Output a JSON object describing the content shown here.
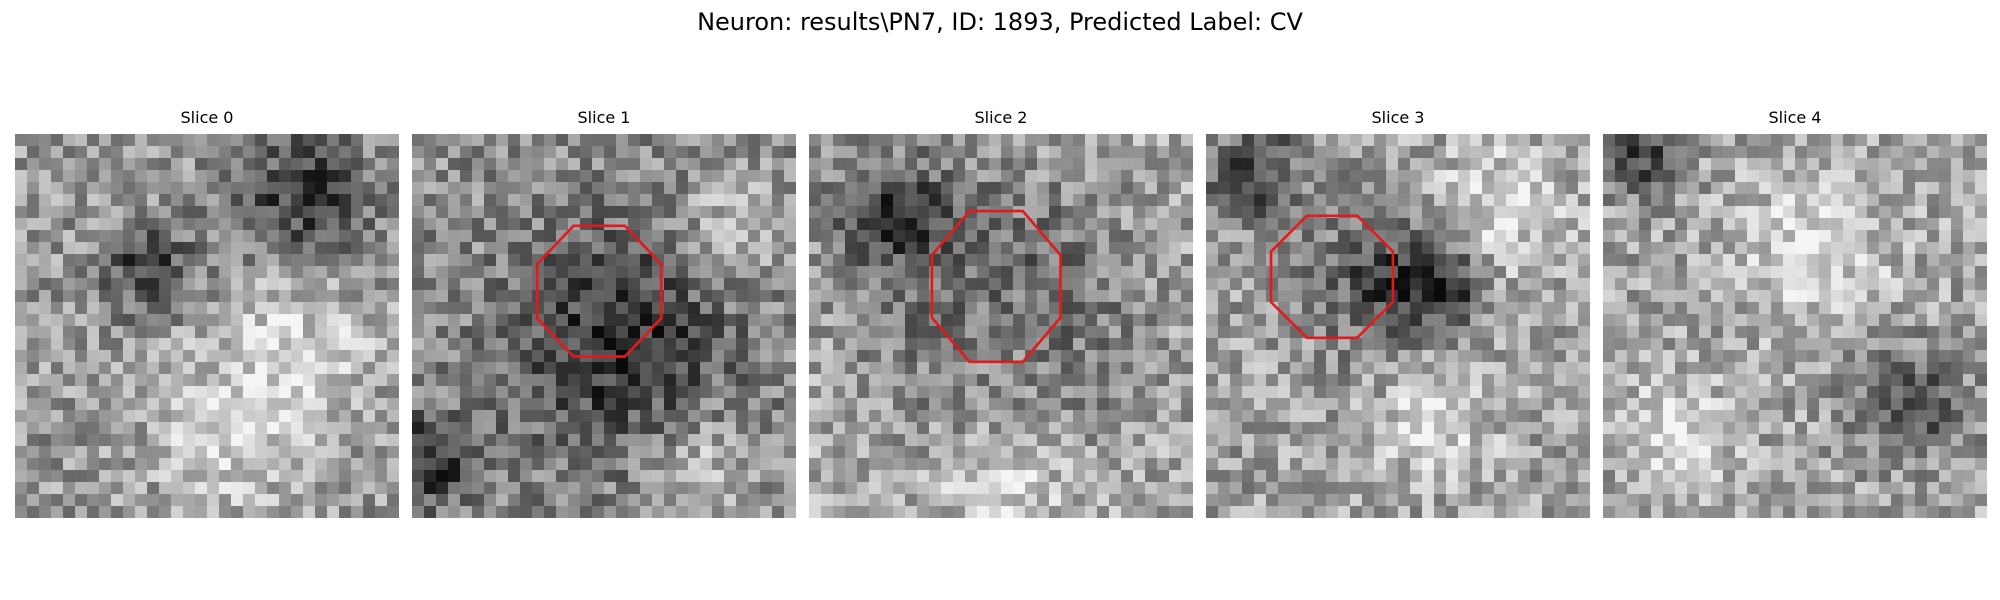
{
  "figure": {
    "title": "Neuron: results\\PN7, ID: 1893, Predicted Label: CV"
  },
  "panels": [
    {
      "title": "Slice 0",
      "contour": false,
      "seed": 11,
      "mean": 0.6,
      "dark_spots": [
        [
          0.75,
          0.17,
          0.18
        ],
        [
          0.35,
          0.35,
          0.12
        ]
      ],
      "light_spots": [
        [
          0.72,
          0.55,
          0.22
        ],
        [
          0.55,
          0.8,
          0.18
        ]
      ]
    },
    {
      "title": "Slice 1",
      "contour": true,
      "seed": 23,
      "mean": 0.55,
      "dark_spots": [
        [
          0.55,
          0.55,
          0.28
        ],
        [
          0.05,
          0.85,
          0.12
        ]
      ],
      "light_spots": [
        [
          0.85,
          0.25,
          0.15
        ],
        [
          0.75,
          0.85,
          0.15
        ]
      ]
    },
    {
      "title": "Slice 2",
      "contour": true,
      "seed": 37,
      "mean": 0.66,
      "dark_spots": [
        [
          0.2,
          0.2,
          0.15
        ],
        [
          0.5,
          0.45,
          0.32
        ]
      ],
      "light_spots": [
        [
          0.5,
          0.5,
          0.18
        ],
        [
          0.5,
          0.9,
          0.16
        ]
      ]
    },
    {
      "title": "Slice 3",
      "contour": true,
      "seed": 41,
      "mean": 0.63,
      "dark_spots": [
        [
          0.13,
          0.1,
          0.13
        ],
        [
          0.47,
          0.38,
          0.18
        ],
        [
          0.62,
          0.4,
          0.1
        ]
      ],
      "light_spots": [
        [
          0.75,
          0.2,
          0.18
        ],
        [
          0.6,
          0.75,
          0.15
        ]
      ]
    },
    {
      "title": "Slice 4",
      "contour": false,
      "seed": 53,
      "mean": 0.64,
      "dark_spots": [
        [
          0.1,
          0.07,
          0.1
        ],
        [
          0.8,
          0.7,
          0.14
        ]
      ],
      "light_spots": [
        [
          0.55,
          0.3,
          0.2
        ],
        [
          0.2,
          0.78,
          0.15
        ]
      ]
    }
  ],
  "colors": {
    "contour": "#e31a1c",
    "background": "#ffffff"
  }
}
